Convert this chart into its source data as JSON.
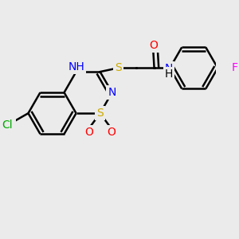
{
  "bg_color": "#ebebeb",
  "bond_color": "black",
  "bond_lw": 1.8,
  "dbo": 0.018,
  "atom_colors": {
    "N": "#0000ff",
    "O": "#ff0000",
    "S": "#ccaa00",
    "Cl": "#00aa00",
    "F": "#ff00ff",
    "C": "black"
  },
  "fs": 10
}
